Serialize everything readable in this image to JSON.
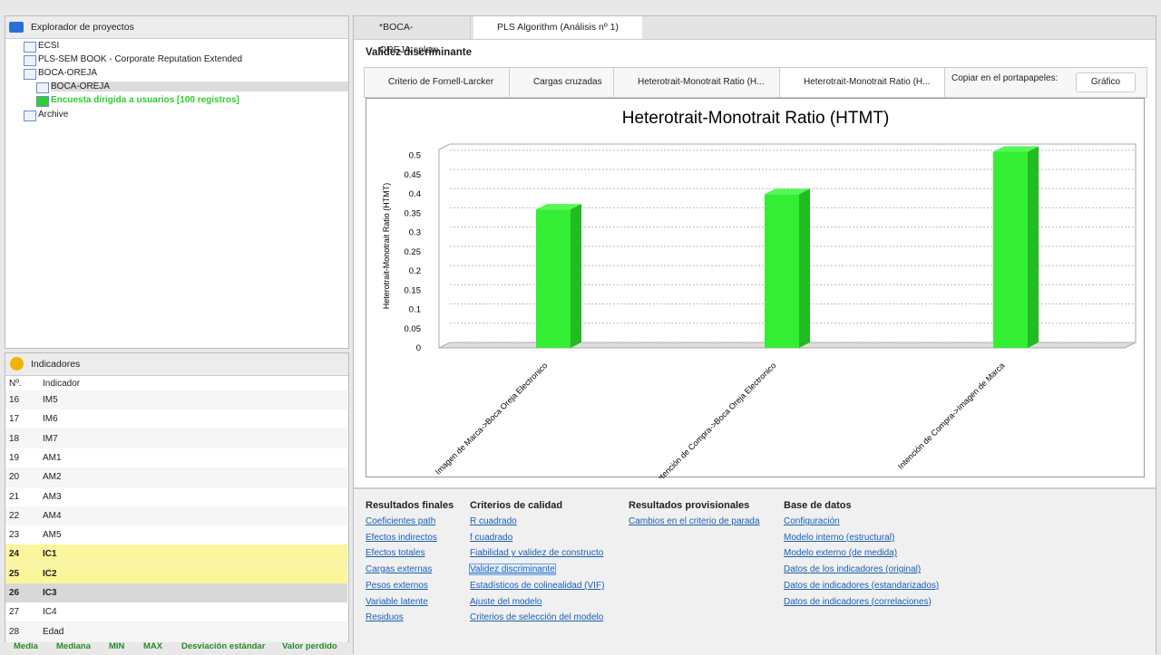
{
  "project_explorer": {
    "title": "Explorador de proyectos",
    "items": [
      "ECSI",
      "PLS-SEM BOOK - Corporate Reputation Extended",
      "BOCA-OREJA",
      "BOCA-OREJA",
      "Encuesta dirigida a usuarios [100 registros]",
      "Archive"
    ]
  },
  "indicators": {
    "title": "Indicadores",
    "headers": [
      "Nº.",
      "Indicador"
    ],
    "rows": [
      [
        16,
        "IM5"
      ],
      [
        17,
        "IM6"
      ],
      [
        18,
        "IM7"
      ],
      [
        19,
        "AM1"
      ],
      [
        20,
        "AM2"
      ],
      [
        21,
        "AM3"
      ],
      [
        22,
        "AM4"
      ],
      [
        23,
        "AM5"
      ],
      [
        24,
        "IC1"
      ],
      [
        25,
        "IC2"
      ],
      [
        26,
        "IC3"
      ],
      [
        27,
        "IC4"
      ],
      [
        28,
        "Edad"
      ]
    ],
    "footer": [
      "Media",
      "Mediana",
      "MIN",
      "MAX",
      "Desviación estándar",
      "Valor perdido"
    ]
  },
  "editor_tabs": [
    "*BOCA-OREJA.splsm",
    "PLS Algorithm (Análisis nº 1)"
  ],
  "section_title": "Validez discriminante",
  "result_tabs": [
    "Criterio de Fornell-Larcker",
    "Cargas cruzadas",
    "Heterotrait-Monotrait Ratio (H...",
    "Heterotrait-Monotrait Ratio (H..."
  ],
  "copy_label": "Copiar en el portapapeles:",
  "copy_button": "Gráfico",
  "chart_data": {
    "type": "bar",
    "title": "Heterotrait-Monotrait Ratio (HTMT)",
    "ylabel": "Heterotrait-Monotrait Ratio (HTMT)",
    "categories": [
      "Imagen de Marca->Boca Oreja Electronico",
      "Intención de Compra->Boca Oreja Electronico",
      "Intención de Compra->Imagen de Marca"
    ],
    "values": [
      0.36,
      0.4,
      0.51
    ],
    "color": "#33ee33",
    "ylim": [
      0,
      0.53
    ],
    "yticks": [
      0,
      0.05,
      0.1,
      0.15,
      0.2,
      0.25,
      0.3,
      0.35,
      0.4,
      0.45,
      0.5
    ],
    "grid": true
  },
  "results": [
    {
      "heading": "Resultados finales",
      "links": [
        "Coeficientes path",
        "Efectos indirectos",
        "Efectos totales",
        "Cargas externas",
        "Pesos externos",
        "Variable latente",
        "Residuos"
      ]
    },
    {
      "heading": "Criterios de calidad",
      "links": [
        "R cuadrado",
        "f cuadrado",
        "Fiabilidad y validez de constructo",
        "Validez discriminante",
        "Estadísticos de colinealidad (VIF)",
        "Ajuste del modelo",
        "Criterios de selección del modelo"
      ]
    },
    {
      "heading": "Resultados provisionales",
      "links": [
        "Cambios en el criterio de parada"
      ]
    },
    {
      "heading": "Base de datos",
      "links": [
        "Configuración",
        "Modelo interno (estructural)",
        "Modelo externo (de medida)",
        "Datos de los indicadores (original)",
        "Datos de indicadores (estandarizados)",
        "Datos de indicadores (correlaciones)"
      ]
    }
  ]
}
